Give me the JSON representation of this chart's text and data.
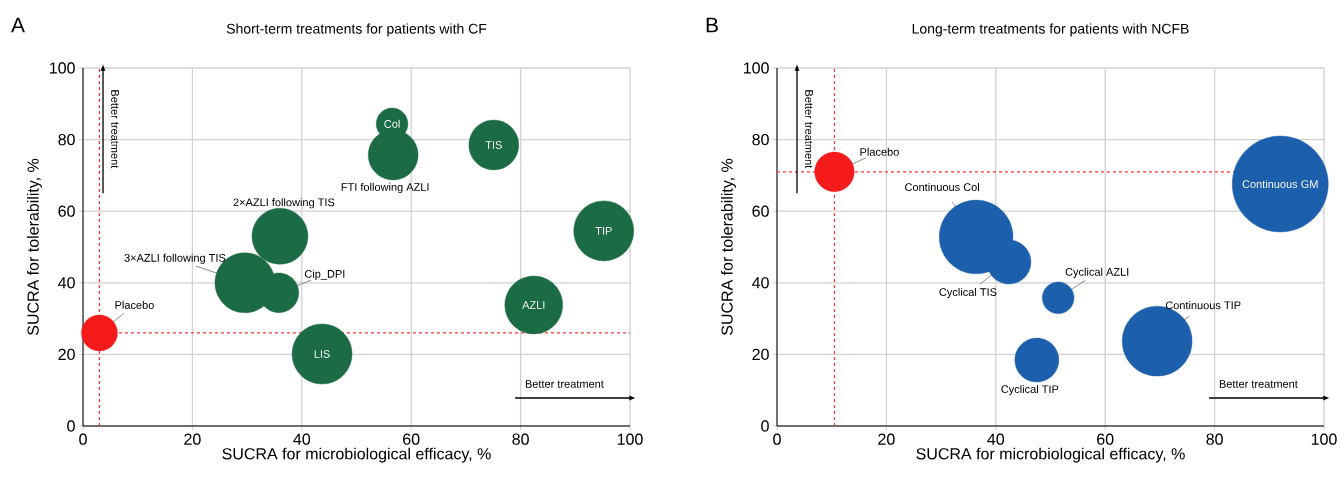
{
  "chart_data": [
    {
      "type": "bubble",
      "title": "Short-term treatments for patients with CF",
      "xlabel": "SUCRA for microbiological efficacy, %",
      "ylabel": "SUCRA for tolerability, %",
      "x": [
        3,
        56.5,
        56.7,
        75.1,
        95.2,
        36,
        29.6,
        35.8,
        82.4,
        43.7
      ],
      "values": [
        26,
        84.4,
        75.7,
        78.5,
        54.5,
        53,
        40,
        37.2,
        33.8,
        20.1
      ],
      "sizes": [
        0.36,
        0.28,
        0.69,
        0.69,
        1,
        0.87,
        1,
        0.44,
        0.93,
        1
      ],
      "colors": [
        "#f51b1b",
        "#1b6b45",
        "#1b6b45",
        "#1b6b45",
        "#1b6b45",
        "#1b6b45",
        "#1b6b45",
        "#1b6b45",
        "#1b6b45",
        "#1b6b45"
      ],
      "xlim": [
        0,
        100
      ],
      "ylim": [
        0,
        100
      ],
      "xticks": [
        0,
        20,
        40,
        60,
        80,
        100
      ],
      "yticks": [
        0,
        20,
        40,
        60,
        80,
        100
      ],
      "grid": true,
      "ref_lines": [
        {
          "axis": "x",
          "value": 3,
          "color": "#ff3333",
          "line_style": "dashed"
        },
        {
          "axis": "y",
          "value": 26,
          "color": "#ff3333",
          "line_style": "dashed"
        }
      ],
      "annotations": [
        "A",
        "Better treatment",
        "Better treatment",
        {
          "text": "Placebo",
          "x": 3,
          "y": 26
        },
        {
          "text": "Col",
          "x": 56.5,
          "y": 84.4
        },
        {
          "text": "FTI following AZLI",
          "x": 56.7,
          "y": 75.7
        },
        {
          "text": "TIS",
          "x": 75.1,
          "y": 78.5
        },
        {
          "text": "TIP",
          "x": 95.2,
          "y": 54.5
        },
        {
          "text": "2×AZLI following TIS",
          "x": 36,
          "y": 53
        },
        {
          "text": "3×AZLI following TIS",
          "x": 29.6,
          "y": 40
        },
        {
          "text": "Cip_DPI",
          "x": 35.8,
          "y": 37.2
        },
        {
          "text": "AZLI",
          "x": 82.4,
          "y": 33.8
        },
        {
          "text": "LIS",
          "x": 43.7,
          "y": 20.1
        }
      ]
    },
    {
      "type": "bubble",
      "title": "Long-term treatments for patients with NCFB",
      "xlabel": "SUCRA for microbiological efficacy, %",
      "ylabel": "SUCRA for tolerability, %",
      "x": [
        10.5,
        92,
        36.4,
        42.4,
        51.4,
        47.5,
        69.5
      ],
      "values": [
        71,
        67.6,
        52.8,
        45.8,
        35.8,
        18.4,
        23.7
      ],
      "sizes": [
        0.17,
        1,
        0.59,
        0.21,
        0.11,
        0.21,
        0.53
      ],
      "colors": [
        "#f51b1b",
        "#1c5fac",
        "#1c5fac",
        "#1c5fac",
        "#1c5fac",
        "#1c5fac",
        "#1c5fac"
      ],
      "xlim": [
        0,
        100
      ],
      "ylim": [
        0,
        100
      ],
      "xticks": [
        0,
        20,
        40,
        60,
        80,
        100
      ],
      "yticks": [
        0,
        20,
        40,
        60,
        80,
        100
      ],
      "grid": true,
      "ref_lines": [
        {
          "axis": "x",
          "value": 10.5,
          "color": "#ff3333",
          "line_style": "dashed"
        },
        {
          "axis": "y",
          "value": 71,
          "color": "#ff3333",
          "line_style": "dashed"
        }
      ],
      "annotations": [
        "B",
        "Better treatment",
        "Better treatment",
        {
          "text": "Placebo",
          "x": 10.5,
          "y": 71
        },
        {
          "text": "Continuous GM",
          "x": 92,
          "y": 67.6
        },
        {
          "text": "Continuous Col",
          "x": 36.4,
          "y": 52.8
        },
        {
          "text": "Cyclical TIS",
          "x": 42.4,
          "y": 45.8
        },
        {
          "text": "Cyclical AZLI",
          "x": 51.4,
          "y": 35.8
        },
        {
          "text": "Cyclical TIP",
          "x": 47.5,
          "y": 18.4
        },
        {
          "text": "Continuous TIP",
          "x": 69.5,
          "y": 23.7
        }
      ]
    }
  ]
}
